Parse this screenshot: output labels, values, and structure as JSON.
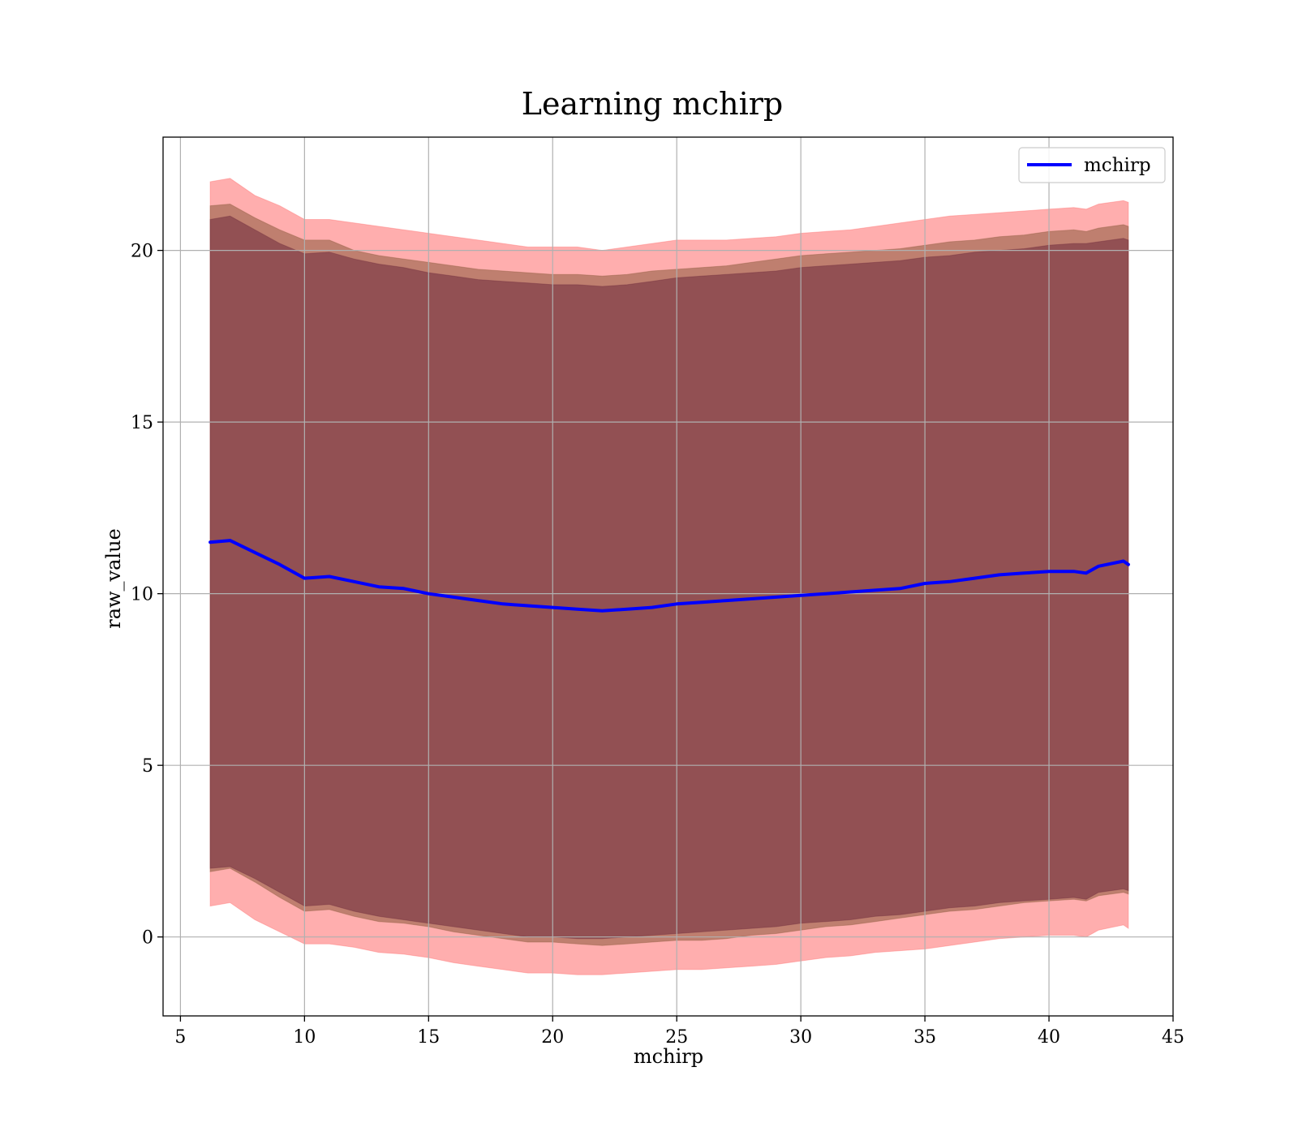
{
  "chart_data": {
    "type": "area",
    "title": "Learning mchirp",
    "xlabel": "mchirp",
    "ylabel": "raw_value",
    "xlim": [
      4.3,
      45
    ],
    "ylim": [
      -2.3,
      23.3
    ],
    "xticks": [
      5,
      10,
      15,
      20,
      25,
      30,
      35,
      40,
      45
    ],
    "yticks": [
      0,
      5,
      10,
      15,
      20
    ],
    "xtick_labels": [
      "5",
      "10",
      "15",
      "20",
      "25",
      "30",
      "35",
      "40",
      "45"
    ],
    "ytick_labels": [
      "0",
      "5",
      "10",
      "15",
      "20"
    ],
    "grid": true,
    "legend_position": "top-right",
    "x": [
      6.2,
      7.0,
      8.0,
      9.0,
      10.0,
      11.0,
      12.0,
      13.0,
      14.0,
      15.0,
      16.0,
      17.0,
      18.0,
      19.0,
      20.0,
      21.0,
      22.0,
      23.0,
      24.0,
      25.0,
      26.0,
      27.0,
      28.0,
      29.0,
      30.0,
      31.0,
      32.0,
      33.0,
      34.0,
      35.0,
      36.0,
      37.0,
      38.0,
      39.0,
      40.0,
      41.0,
      41.5,
      42.0,
      43.0,
      43.2
    ],
    "series": [
      {
        "name": "mchirp",
        "color": "#0000ff",
        "values": [
          11.5,
          11.55,
          11.2,
          10.85,
          10.45,
          10.5,
          10.35,
          10.2,
          10.15,
          10.0,
          9.9,
          9.8,
          9.7,
          9.65,
          9.6,
          9.55,
          9.5,
          9.55,
          9.6,
          9.7,
          9.75,
          9.8,
          9.85,
          9.9,
          9.95,
          10.0,
          10.05,
          10.1,
          10.15,
          10.3,
          10.35,
          10.45,
          10.55,
          10.6,
          10.65,
          10.65,
          10.6,
          10.8,
          10.95,
          10.85
        ]
      }
    ],
    "bands": [
      {
        "color": "#ff6b6b",
        "opacity": 0.55,
        "upper": [
          22.0,
          22.1,
          21.6,
          21.3,
          20.9,
          20.9,
          20.8,
          20.7,
          20.6,
          20.5,
          20.4,
          20.3,
          20.2,
          20.1,
          20.1,
          20.1,
          20.0,
          20.1,
          20.2,
          20.3,
          20.3,
          20.3,
          20.35,
          20.4,
          20.5,
          20.55,
          20.6,
          20.7,
          20.8,
          20.9,
          21.0,
          21.05,
          21.1,
          21.15,
          21.2,
          21.25,
          21.2,
          21.35,
          21.45,
          21.4
        ],
        "lower": [
          0.9,
          1.0,
          0.5,
          0.15,
          -0.2,
          -0.2,
          -0.3,
          -0.45,
          -0.5,
          -0.6,
          -0.75,
          -0.85,
          -0.95,
          -1.05,
          -1.05,
          -1.1,
          -1.1,
          -1.05,
          -1.0,
          -0.95,
          -0.95,
          -0.9,
          -0.85,
          -0.8,
          -0.7,
          -0.6,
          -0.55,
          -0.45,
          -0.4,
          -0.35,
          -0.25,
          -0.15,
          -0.05,
          0.0,
          0.05,
          0.05,
          0.0,
          0.2,
          0.35,
          0.25
        ]
      },
      {
        "color": "#8b5a3c",
        "opacity": 0.55,
        "upper": [
          21.3,
          21.35,
          20.95,
          20.6,
          20.3,
          20.3,
          20.0,
          19.85,
          19.75,
          19.65,
          19.55,
          19.45,
          19.4,
          19.35,
          19.3,
          19.3,
          19.25,
          19.3,
          19.4,
          19.45,
          19.5,
          19.55,
          19.65,
          19.75,
          19.85,
          19.9,
          19.95,
          20.0,
          20.05,
          20.15,
          20.25,
          20.3,
          20.4,
          20.45,
          20.55,
          20.6,
          20.55,
          20.65,
          20.75,
          20.7
        ],
        "lower": [
          1.9,
          2.0,
          1.6,
          1.15,
          0.75,
          0.8,
          0.6,
          0.45,
          0.4,
          0.3,
          0.15,
          0.05,
          -0.05,
          -0.15,
          -0.15,
          -0.2,
          -0.25,
          -0.2,
          -0.15,
          -0.1,
          -0.1,
          -0.05,
          0.05,
          0.1,
          0.2,
          0.3,
          0.35,
          0.45,
          0.55,
          0.65,
          0.75,
          0.8,
          0.9,
          1.0,
          1.05,
          1.1,
          1.05,
          1.2,
          1.3,
          1.25
        ]
      },
      {
        "color": "#6e2a3c",
        "opacity": 0.55,
        "upper": [
          20.9,
          21.0,
          20.6,
          20.2,
          19.9,
          19.95,
          19.75,
          19.6,
          19.5,
          19.35,
          19.25,
          19.15,
          19.1,
          19.05,
          19.0,
          19.0,
          18.95,
          19.0,
          19.1,
          19.2,
          19.25,
          19.3,
          19.35,
          19.4,
          19.5,
          19.55,
          19.6,
          19.65,
          19.7,
          19.8,
          19.85,
          19.95,
          20.0,
          20.05,
          20.15,
          20.2,
          20.2,
          20.25,
          20.35,
          20.3
        ],
        "lower": [
          2.0,
          2.05,
          1.7,
          1.3,
          0.9,
          0.95,
          0.75,
          0.6,
          0.5,
          0.4,
          0.3,
          0.2,
          0.1,
          0.0,
          0.0,
          -0.05,
          -0.05,
          0.0,
          0.05,
          0.1,
          0.15,
          0.2,
          0.25,
          0.3,
          0.4,
          0.45,
          0.5,
          0.6,
          0.65,
          0.75,
          0.85,
          0.9,
          1.0,
          1.05,
          1.1,
          1.15,
          1.1,
          1.3,
          1.4,
          1.35
        ]
      }
    ]
  }
}
